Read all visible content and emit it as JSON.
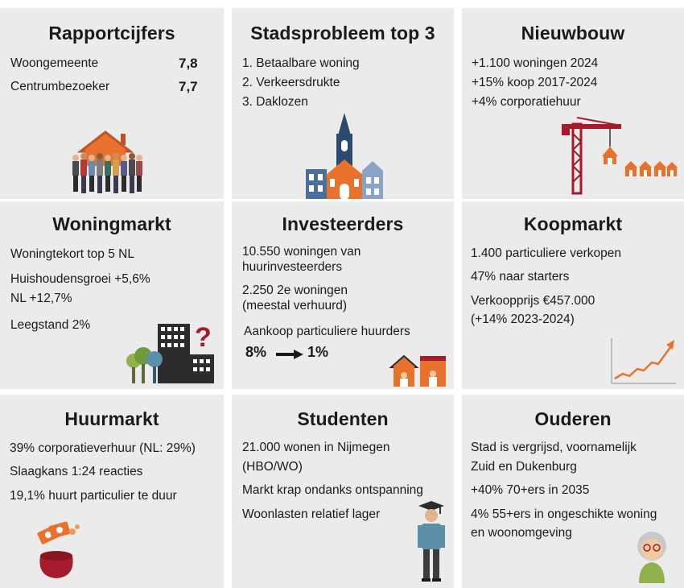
{
  "tiles": {
    "rapportcijfers": {
      "title": "Rapportcijfers",
      "rows": [
        {
          "label": "Woongemeente",
          "value": "7,8"
        },
        {
          "label": "Centrumbezoeker",
          "value": "7,7"
        }
      ]
    },
    "stadsprobleem": {
      "title": "Stadsprobleem top 3",
      "items": [
        "1. Betaalbare woning",
        "2. Verkeersdrukte",
        "3. Daklozen"
      ]
    },
    "nieuwbouw": {
      "title": "Nieuwbouw",
      "items": [
        "+1.100 woningen 2024",
        "+15% koop 2017-2024",
        "+4% corporatiehuur"
      ]
    },
    "woningmarkt": {
      "title": "Woningmarkt",
      "items": [
        "Woningtekort top 5 NL",
        "Huishoudensgroei +5,6%",
        "NL +12,7%",
        "Leegstand 2%"
      ]
    },
    "investeerders": {
      "title": "Investeerders",
      "items": [
        "10.550 woningen van",
        "huurinvesteerders",
        "2.250 2e woningen",
        "(meestal verhuurd)",
        "Aankoop particuliere huurders"
      ],
      "from_value": "8%",
      "to_value": "1%"
    },
    "koopmarkt": {
      "title": "Koopmarkt",
      "items": [
        "1.400 particuliere verkopen",
        "47% naar starters",
        "Verkoopprijs €457.000",
        "(+14% 2023-2024)"
      ]
    },
    "huurmarkt": {
      "title": "Huurmarkt",
      "items": [
        "39% corporatieverhuur (NL: 29%)",
        "Slaagkans 1:24 reacties",
        "19,1% huurt particulier te duur"
      ]
    },
    "studenten": {
      "title": "Studenten",
      "items": [
        "21.000 wonen in Nijmegen",
        "(HBO/WO)",
        "Markt krap ondanks ontspanning",
        "Woonlasten relatief lager"
      ]
    },
    "ouderen": {
      "title": "Ouderen",
      "items": [
        "Stad is vergrijsd, voornamelijk",
        "Zuid en Dukenburg",
        "+40% 70+ers in 2035",
        "4% 55+ers in ongeschikte woning",
        "en woonomgeving"
      ]
    }
  },
  "icons": {
    "row1": [
      "people-house-icon",
      "church-icon",
      "crane-icon"
    ],
    "row2": [
      "trees-building-question-icon",
      "investor-houses-icon",
      "rising-price-chart-icon"
    ],
    "row3": [
      "money-purse-icon",
      "student-icon",
      "elderly-woman-icon"
    ]
  },
  "colors": {
    "tile_bg": "#ebebeb",
    "accent": "#e8722c",
    "navy": "#2b4a6f",
    "red": "#a41c2b"
  }
}
